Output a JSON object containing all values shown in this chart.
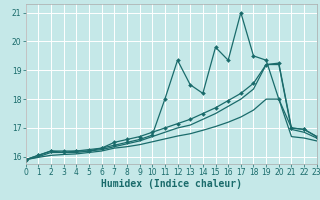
{
  "xlabel": "Humidex (Indice chaleur)",
  "bg_color": "#c5e8e8",
  "grid_color": "#ffffff",
  "line_color": "#1a6b6b",
  "xlim": [
    0,
    23
  ],
  "ylim": [
    15.75,
    21.3
  ],
  "xticks": [
    0,
    1,
    2,
    3,
    4,
    5,
    6,
    7,
    8,
    9,
    10,
    11,
    12,
    13,
    14,
    15,
    16,
    17,
    18,
    19,
    20,
    21,
    22,
    23
  ],
  "yticks": [
    16,
    17,
    18,
    19,
    20,
    21
  ],
  "s1_x": [
    0,
    1,
    2,
    3,
    4,
    5,
    6,
    7,
    8,
    9,
    10,
    11,
    12,
    13,
    14,
    15,
    16,
    17,
    18,
    19,
    20,
    21,
    22,
    23
  ],
  "s1_y": [
    15.9,
    16.05,
    16.2,
    16.2,
    16.2,
    16.25,
    16.3,
    16.5,
    16.6,
    16.7,
    16.85,
    17.0,
    17.15,
    17.3,
    17.5,
    17.7,
    17.95,
    18.2,
    18.55,
    19.2,
    19.25,
    17.0,
    16.95,
    16.7
  ],
  "s2_x": [
    0,
    1,
    2,
    3,
    4,
    5,
    6,
    7,
    8,
    9,
    10,
    11,
    12,
    13,
    14,
    15,
    16,
    17,
    18,
    19,
    20,
    21,
    22,
    23
  ],
  "s2_y": [
    15.9,
    16.05,
    16.2,
    16.15,
    16.2,
    16.2,
    16.3,
    16.4,
    16.5,
    16.6,
    16.75,
    18.0,
    19.35,
    18.5,
    18.2,
    19.8,
    19.35,
    21.0,
    19.5,
    19.35,
    18.0,
    17.0,
    16.95,
    16.7
  ],
  "s3_x": [
    0,
    1,
    2,
    3,
    4,
    5,
    6,
    7,
    8,
    9,
    10,
    11,
    12,
    13,
    14,
    15,
    16,
    17,
    18,
    19,
    20,
    21,
    22,
    23
  ],
  "s3_y": [
    15.9,
    16.0,
    16.15,
    16.15,
    16.15,
    16.2,
    16.25,
    16.35,
    16.45,
    16.55,
    16.7,
    16.85,
    17.0,
    17.1,
    17.3,
    17.5,
    17.75,
    18.0,
    18.35,
    19.2,
    19.2,
    16.95,
    16.85,
    16.65
  ],
  "s4_x": [
    0,
    1,
    2,
    3,
    4,
    5,
    6,
    7,
    8,
    9,
    10,
    11,
    12,
    13,
    14,
    15,
    16,
    17,
    18,
    19,
    20,
    21,
    22,
    23
  ],
  "s4_y": [
    15.9,
    15.98,
    16.05,
    16.08,
    16.1,
    16.15,
    16.2,
    16.3,
    16.35,
    16.42,
    16.52,
    16.62,
    16.72,
    16.8,
    16.92,
    17.05,
    17.2,
    17.38,
    17.62,
    18.0,
    18.0,
    16.7,
    16.65,
    16.55
  ],
  "markersize": 2.0,
  "linewidth": 0.9,
  "xlabel_fontsize": 7,
  "tick_fontsize": 5.5
}
